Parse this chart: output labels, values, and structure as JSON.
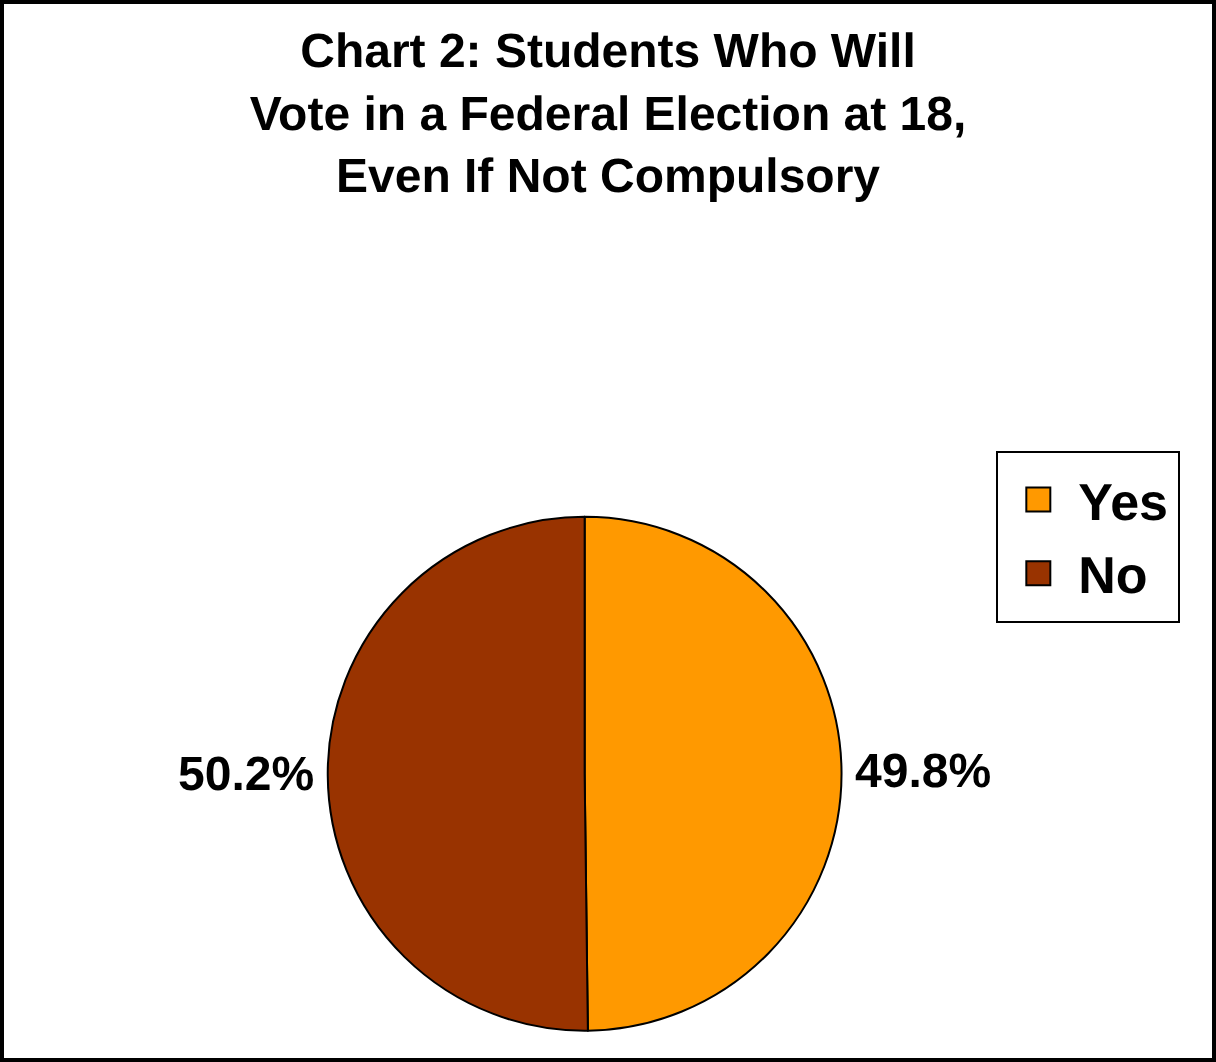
{
  "chart_data": {
    "type": "pie",
    "title": "Chart 2: Students Who Will\nVote in a Federal Election at 18,\nEven If Not Compulsory",
    "categories": [
      "Yes",
      "No"
    ],
    "values": [
      49.8,
      50.2
    ],
    "colors": [
      "#ff9900",
      "#993300"
    ],
    "value_labels": [
      "49.8%",
      "50.2%"
    ],
    "legend": "top right"
  }
}
